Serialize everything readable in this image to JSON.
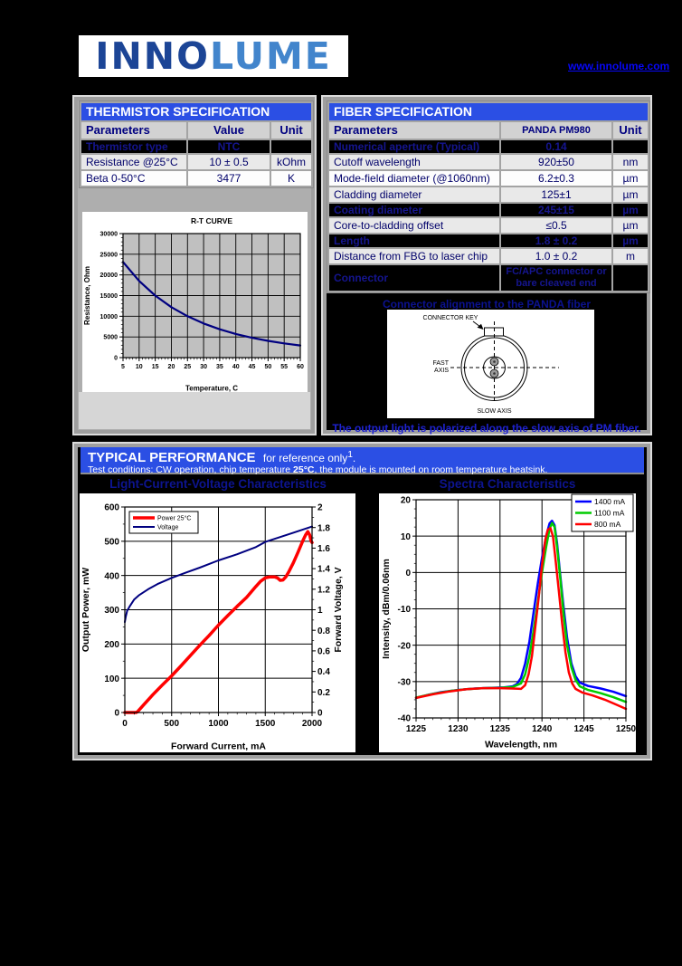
{
  "header": {
    "logo_part1": "INNO",
    "logo_part2": "LUME",
    "website": "www.innolume.com"
  },
  "thermistor": {
    "title": "THERMISTOR SPECIFICATION",
    "columns": [
      "Parameters",
      "Value",
      "Unit"
    ],
    "rows": [
      {
        "param": "Thermistor type",
        "value": "NTC",
        "unit": "",
        "style": "dark"
      },
      {
        "param": "Resistance @25°C",
        "value": "10 ± 0.5",
        "unit": "kOhm",
        "style": "gray"
      },
      {
        "param": "Beta 0-50°C",
        "value": "3477",
        "unit": "K",
        "style": "white"
      }
    ]
  },
  "fiber": {
    "title": "FIBER SPECIFICATION",
    "columns": [
      "Parameters",
      "PANDA PM980",
      "Unit"
    ],
    "rows": [
      {
        "param": "Numerical aperture (Typical)",
        "value": "0.14",
        "unit": "",
        "style": "dark"
      },
      {
        "param": "Cutoff wavelength",
        "value": "920±50",
        "unit": "nm",
        "style": "gray"
      },
      {
        "param": "Mode-field diameter (@1060nm)",
        "value": "6.2±0.3",
        "unit": "µm",
        "style": "white"
      },
      {
        "param": "Cladding diameter",
        "value": "125±1",
        "unit": "µm",
        "style": "gray"
      },
      {
        "param": "Coating diameter",
        "value": "245±15",
        "unit": "µm",
        "style": "dark"
      },
      {
        "param": "Core-to-cladding offset",
        "value": "≤0.5",
        "unit": "µm",
        "style": "gray"
      },
      {
        "param": "Length",
        "value": "1.8 ± 0.2",
        "unit": "µm",
        "style": "dark"
      },
      {
        "param": "Distance from FBG to laser chip",
        "value": "1.0 ± 0.2",
        "unit": "m",
        "style": "gray"
      },
      {
        "param": "Connector",
        "value": "FC/APC connector or bare cleaved end",
        "unit": "",
        "style": "dark",
        "tall": true
      }
    ],
    "alignment_note": "Connector alignment to the PANDA fiber",
    "polarization_note": "The output light is polarized along the slow axis of PM fiber.",
    "diagram": {
      "connector_key": "CONNECTOR KEY",
      "fast_axis": "FAST AXIS",
      "slow_axis": "SLOW AXIS"
    }
  },
  "performance": {
    "title": "TYPICAL PERFORMANCE",
    "title_suffix": "for reference only",
    "footnote_mark": "1",
    "period": ".",
    "conditions_pre": "Test conditions: CW operation, chip temperature ",
    "conditions_temp": "25°C",
    "conditions_post": ", the module is mounted on room temperature heatsink."
  },
  "chart_data": [
    {
      "id": "rt",
      "type": "line",
      "title": "R-T CURVE",
      "xlabel": "Temperature, C",
      "ylabel": "Resistance, Ohm",
      "xlim": [
        5,
        60
      ],
      "ylim": [
        0,
        30000
      ],
      "xticks": [
        5,
        10,
        15,
        20,
        25,
        30,
        35,
        40,
        45,
        50,
        55,
        60
      ],
      "yticks": [
        0,
        5000,
        10000,
        15000,
        20000,
        25000,
        30000
      ],
      "plot_bg": "#c0c0c0",
      "grid": true,
      "series": [
        {
          "name": "",
          "color": "#000080",
          "width": 2.2,
          "x": [
            5,
            10,
            15,
            20,
            25,
            30,
            35,
            40,
            45,
            50,
            55,
            60
          ],
          "y": [
            23127,
            18550,
            14990,
            12201,
            10000,
            8250,
            6849,
            5720,
            4804,
            4057,
            3444,
            2937
          ]
        }
      ]
    },
    {
      "id": "liv",
      "type": "line",
      "title": "Light-Current-Voltage Characteristics",
      "xlabel": "Forward Current, mA",
      "ylabel": "Output Power, mW",
      "ylabel_right": "Forward Voltage, V",
      "xlim": [
        0,
        2000
      ],
      "ylim": [
        0,
        600
      ],
      "ylim_right": [
        0,
        2
      ],
      "xticks": [
        0,
        500,
        1000,
        1500,
        2000
      ],
      "yticks": [
        0,
        100,
        200,
        300,
        400,
        500,
        600
      ],
      "yticks_right": [
        0,
        0.2,
        0.4,
        0.6,
        0.8,
        1,
        1.2,
        1.4,
        1.6,
        1.8,
        2
      ],
      "grid": true,
      "legend_position": "top-left",
      "series": [
        {
          "name": "Power  25°C",
          "color": "#ff0000",
          "width": 3.5,
          "axis": "left",
          "x": [
            0,
            120,
            135,
            200,
            300,
            400,
            500,
            600,
            700,
            800,
            900,
            1000,
            1100,
            1200,
            1300,
            1400,
            1450,
            1500,
            1550,
            1600,
            1630,
            1660,
            1690,
            1720,
            1750,
            1800,
            1850,
            1900,
            1930,
            1955,
            1975,
            1990,
            2000
          ],
          "y": [
            0,
            0,
            2,
            22,
            52,
            80,
            107,
            136,
            166,
            196,
            225,
            255,
            283,
            310,
            336,
            368,
            383,
            393,
            396,
            396,
            393,
            386,
            387,
            396,
            410,
            437,
            468,
            500,
            518,
            528,
            518,
            500,
            496
          ]
        },
        {
          "name": "Voltage",
          "color": "#000080",
          "width": 2,
          "axis": "right",
          "x": [
            0,
            10,
            25,
            50,
            100,
            150,
            250,
            350,
            500,
            650,
            800,
            1000,
            1200,
            1400,
            1500,
            1600,
            1800,
            2000
          ],
          "y": [
            0.88,
            0.93,
            0.99,
            1.03,
            1.1,
            1.14,
            1.2,
            1.25,
            1.31,
            1.36,
            1.41,
            1.48,
            1.54,
            1.61,
            1.66,
            1.69,
            1.75,
            1.81
          ]
        }
      ]
    },
    {
      "id": "spectra",
      "type": "line",
      "title": "Spectra Characteristics",
      "xlabel": "Wavelength, nm",
      "ylabel": "Intensity, dBm/0.06nm",
      "xlim": [
        1225,
        1250
      ],
      "ylim": [
        -40,
        20
      ],
      "xticks": [
        1225,
        1230,
        1235,
        1240,
        1245,
        1250
      ],
      "yticks": [
        -40,
        -30,
        -20,
        -10,
        0,
        10,
        20
      ],
      "grid": true,
      "legend_position": "top-right",
      "series": [
        {
          "name": "1400 mA",
          "color": "#0000ff",
          "width": 2.5,
          "axis": "left",
          "x": [
            1225,
            1226.5,
            1228,
            1230,
            1232,
            1234,
            1235.5,
            1236.5,
            1237,
            1237.5,
            1238,
            1238.5,
            1239,
            1239.5,
            1240,
            1240.5,
            1240.9,
            1241.2,
            1241.5,
            1241.8,
            1242.1,
            1242.5,
            1243,
            1243.5,
            1244,
            1244.5,
            1245.5,
            1247,
            1248.5,
            1250
          ],
          "y": [
            -34.5,
            -33.6,
            -32.9,
            -32.3,
            -31.9,
            -31.7,
            -31.6,
            -31.3,
            -30.7,
            -29,
            -25,
            -19,
            -11,
            -3,
            4,
            10,
            13.5,
            14.2,
            13,
            8,
            1,
            -8,
            -18,
            -25,
            -28.5,
            -30.3,
            -31.2,
            -31.9,
            -32.8,
            -34
          ]
        },
        {
          "name": "1100 mA",
          "color": "#00cc00",
          "width": 2.5,
          "axis": "left",
          "x": [
            1225,
            1227,
            1229,
            1231,
            1233,
            1235,
            1236.5,
            1237.5,
            1238,
            1238.5,
            1239,
            1239.5,
            1240,
            1240.5,
            1240.9,
            1241.2,
            1241.5,
            1241.8,
            1242.2,
            1242.6,
            1243,
            1243.5,
            1244,
            1244.5,
            1245.5,
            1247,
            1248.5,
            1250
          ],
          "y": [
            -34.4,
            -33.4,
            -32.6,
            -32.1,
            -31.8,
            -31.7,
            -31.5,
            -30.5,
            -28,
            -23,
            -16,
            -8,
            0,
            7,
            12,
            13.6,
            12.5,
            7,
            -2,
            -12,
            -20,
            -26,
            -29.5,
            -31.3,
            -32.3,
            -33.2,
            -34.3,
            -35.6
          ]
        },
        {
          "name": "800 mA",
          "color": "#ff0000",
          "width": 2.5,
          "axis": "left",
          "x": [
            1225,
            1227,
            1229,
            1231,
            1233,
            1235,
            1236.5,
            1237.5,
            1238,
            1238.4,
            1238.8,
            1239.2,
            1239.6,
            1240,
            1240.4,
            1240.7,
            1241,
            1241.3,
            1241.6,
            1242,
            1242.4,
            1242.8,
            1243.2,
            1243.6,
            1244,
            1244.8,
            1246,
            1247.5,
            1249,
            1250
          ],
          "y": [
            -34.5,
            -33.5,
            -32.7,
            -32.1,
            -31.8,
            -31.8,
            -31.9,
            -32,
            -31,
            -28,
            -23,
            -15,
            -7,
            2,
            9,
            11.8,
            12.2,
            10,
            4,
            -5,
            -14,
            -22,
            -27.5,
            -30.5,
            -32,
            -33,
            -33.8,
            -35,
            -36.5,
            -37.5
          ]
        }
      ]
    }
  ]
}
